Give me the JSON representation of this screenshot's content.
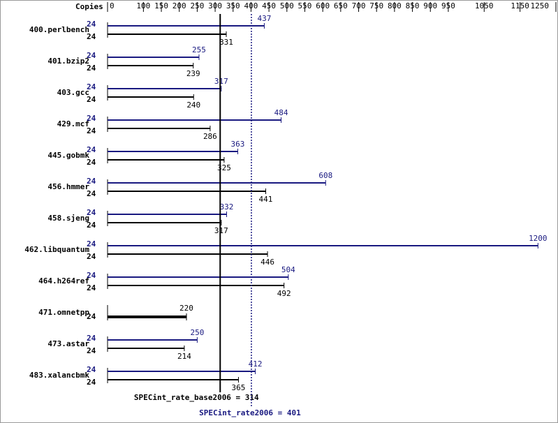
{
  "chart_data": {
    "type": "bar",
    "orientation": "horizontal",
    "copies_header": "Copies",
    "categories": [
      "400.perlbench",
      "401.bzip2",
      "403.gcc",
      "429.mcf",
      "445.gobmk",
      "456.hmmer",
      "458.sjeng",
      "462.libquantum",
      "464.h264ref",
      "471.omnetpp",
      "473.astar",
      "483.xalancbmk"
    ],
    "series": [
      {
        "color": "#191980",
        "values": [
          437,
          255,
          317,
          484,
          363,
          608,
          332,
          1200,
          504,
          null,
          250,
          412
        ],
        "copies": [
          24,
          24,
          24,
          24,
          24,
          24,
          24,
          24,
          24,
          null,
          24,
          24
        ]
      },
      {
        "color": "#000000",
        "values": [
          331,
          239,
          240,
          286,
          325,
          441,
          317,
          446,
          492,
          220,
          214,
          365
        ],
        "copies": [
          24,
          24,
          24,
          24,
          24,
          24,
          24,
          24,
          24,
          24,
          24,
          24
        ]
      }
    ],
    "reference_lines": [
      {
        "value": 314,
        "label": "SPECint_rate_base2006 = 314",
        "color": "#000000"
      },
      {
        "value": 401,
        "label": "SPECint_rate2006 = 401",
        "color": "#191980"
      }
    ],
    "xlim": [
      0,
      1250
    ],
    "xticks": [
      0,
      100,
      150,
      200,
      250,
      300,
      350,
      400,
      450,
      500,
      550,
      600,
      650,
      700,
      750,
      800,
      850,
      900,
      950,
      1050,
      1150,
      1250
    ]
  }
}
